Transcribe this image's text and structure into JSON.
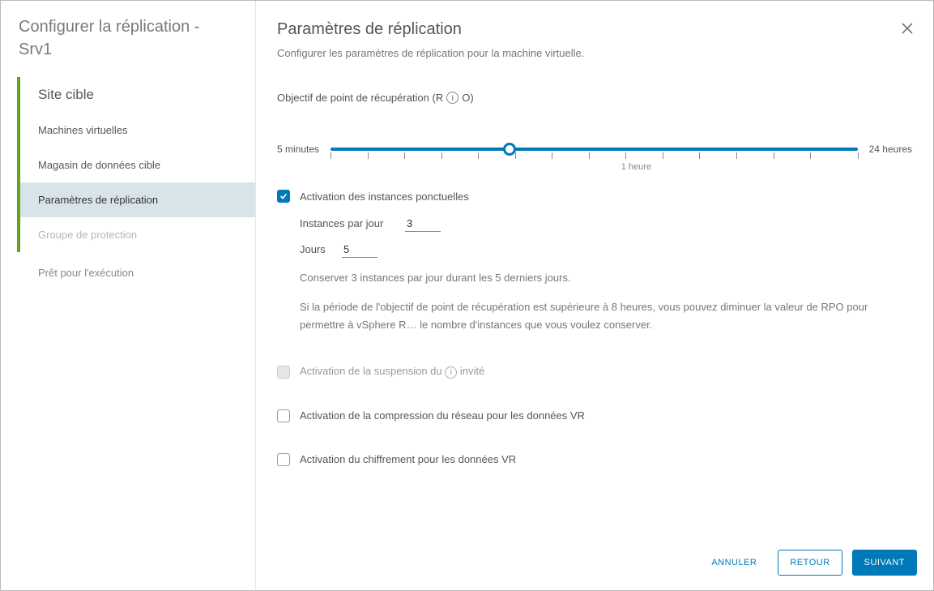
{
  "sidebar": {
    "title": "Configurer la réplication - Srv1",
    "items": [
      {
        "label": "Site cible",
        "kind": "head"
      },
      {
        "label": "Machines virtuelles",
        "kind": "done"
      },
      {
        "label": "Magasin de données cible",
        "kind": "done"
      },
      {
        "label": "Paramètres de réplication",
        "kind": "active"
      },
      {
        "label": "Groupe de protection",
        "kind": "disabled"
      },
      {
        "label": "Prêt pour l'exécution",
        "kind": "future"
      }
    ]
  },
  "main": {
    "title": "Paramètres de réplication",
    "subtitle": "Configurer les paramètres de réplication pour la machine virtuelle.",
    "rpo_label_prefix": "Objectif de point de récupération (R",
    "rpo_label_suffix": "O)"
  },
  "slider": {
    "min_label": "5 minutes",
    "max_label": "24 heures",
    "value_label": "1 heure",
    "thumb_percent": 34,
    "value_label_percent": 58,
    "track_color": "#0079b8",
    "tick_color": "#888888",
    "ticks_percent": [
      0,
      7,
      14,
      21,
      28,
      35,
      42,
      49,
      56,
      63,
      70,
      77,
      84,
      91,
      100
    ]
  },
  "pit": {
    "enable_label": "Activation des instances ponctuelles",
    "enabled": true,
    "instances_label": "Instances par jour",
    "instances_value": "3",
    "days_label": "Jours",
    "days_value": "5",
    "summary": "Conserver 3 instances par jour durant les 5 derniers jours.",
    "warning": "Si la période de l'objectif de point de récupération est supérieure à 8 heures, vous pouvez diminuer la valeur de RPO pour permettre à vSphere R… le nombre d'instances que vous voulez conserver."
  },
  "quiesce": {
    "label_prefix": "Activation de la suspension du ",
    "label_suffix": " invité",
    "enabled": false,
    "disabled_state": true
  },
  "compression": {
    "label": "Activation de la compression du réseau pour les données VR",
    "enabled": false
  },
  "encryption": {
    "label": "Activation du chiffrement pour les données VR",
    "enabled": false
  },
  "footer": {
    "cancel": "ANNULER",
    "back": "RETOUR",
    "next": "SUIVANT"
  },
  "colors": {
    "accent": "#0079b8",
    "success": "#62a420",
    "text": "#565656",
    "muted": "#888888"
  }
}
